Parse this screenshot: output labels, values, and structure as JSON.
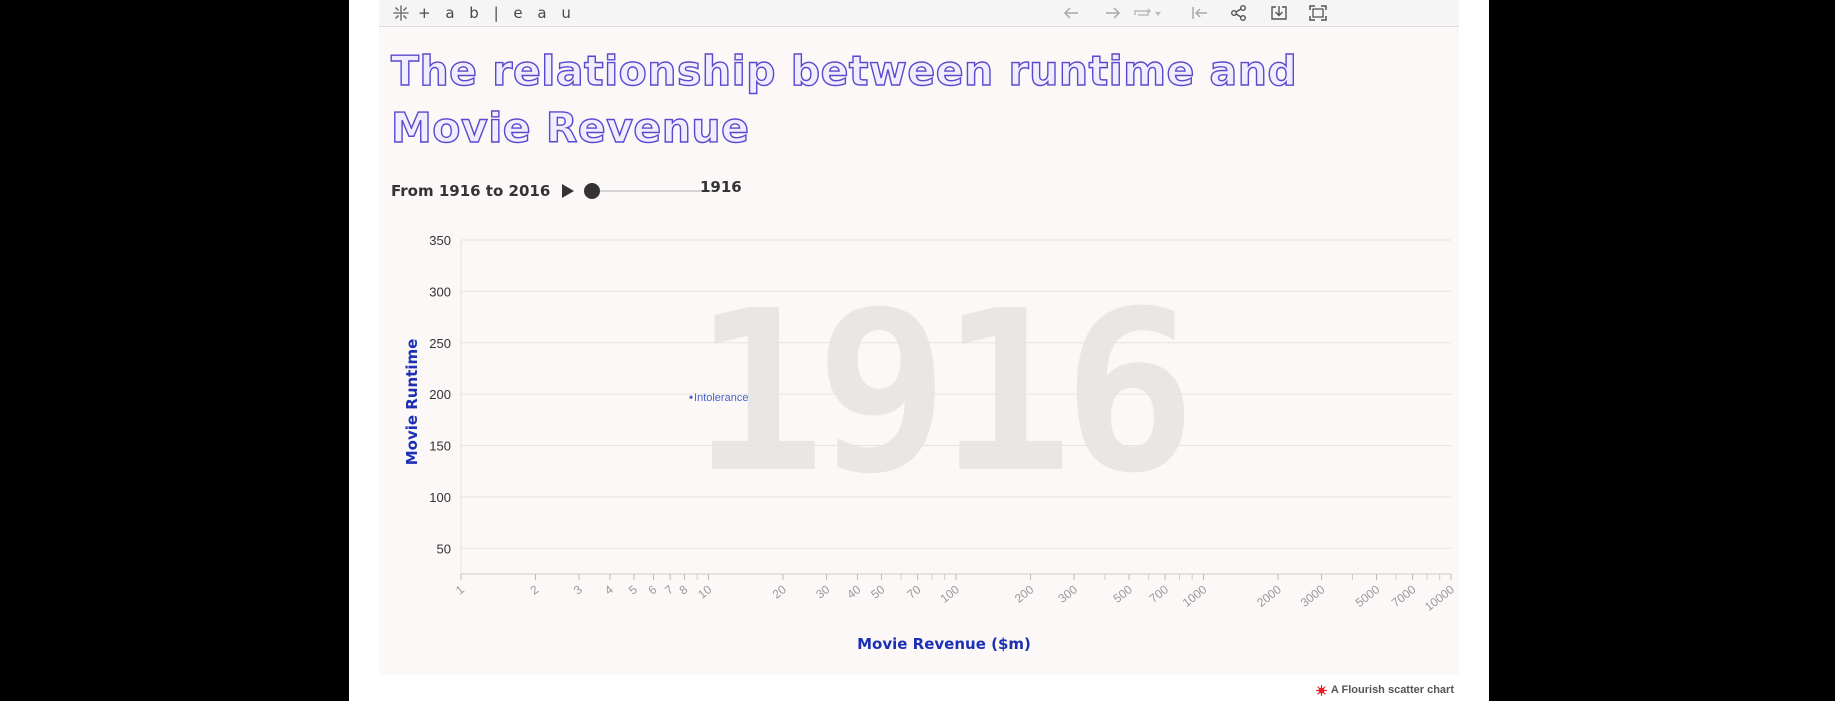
{
  "toolbar": {
    "logo_text": "+ a b | e a u",
    "buttons": [
      "undo-icon",
      "redo-icon",
      "revert-icon",
      "dropdown-icon",
      "reset-icon",
      "share-icon",
      "download-icon",
      "fullscreen-icon"
    ]
  },
  "chart_data": {
    "type": "scatter",
    "title": "The relationship between runtime and Movie Revenue",
    "xlabel": "Movie Revenue ($m)",
    "ylabel": "Movie Runtime",
    "x_scale": "log",
    "xlim": [
      1,
      10000
    ],
    "ylim": [
      25,
      350
    ],
    "x_ticks": [
      1,
      2,
      3,
      4,
      5,
      6,
      7,
      8,
      10,
      20,
      30,
      40,
      50,
      70,
      100,
      200,
      300,
      500,
      700,
      1000,
      2000,
      3000,
      5000,
      7000,
      10000
    ],
    "x_minor_ticks": [
      9,
      60,
      80,
      90,
      400,
      600,
      800,
      900,
      4000,
      6000,
      8000,
      9000
    ],
    "y_ticks": [
      50,
      100,
      150,
      200,
      250,
      300,
      350
    ],
    "grid": "horizontal",
    "background_year": "1916",
    "points": [
      {
        "label": "Intolerance",
        "x": 8.5,
        "y": 197
      }
    ],
    "point_color": "#4a63c9",
    "axis_label_color": "#1d2fb5"
  },
  "timeline": {
    "range_label": "From 1916 to 2016",
    "start": 1916,
    "end": 2016,
    "current": 1916,
    "current_label": "1916"
  },
  "footer": {
    "credit": "A Flourish scatter chart"
  }
}
